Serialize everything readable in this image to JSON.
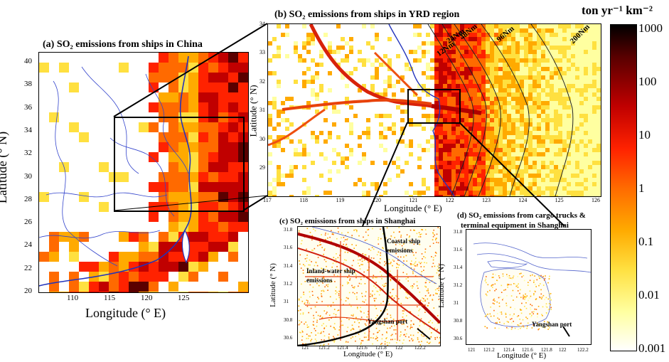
{
  "panels": {
    "a": {
      "title": "(a) SO₂ emissions from ships in China",
      "xlabel": "Longitude (° E)",
      "ylabel": "Latitude (° N)",
      "xticks": [
        "110",
        "115",
        "120",
        "125"
      ],
      "yticks": [
        "40",
        "38",
        "36",
        "34",
        "32",
        "30",
        "28",
        "26",
        "24",
        "22",
        "20"
      ]
    },
    "b": {
      "title": "(b) SO₂ emissions from ships in YRD region",
      "xlabel": "Longitude (° E)",
      "ylabel": "Latitude (° N)",
      "xticks": [
        "117",
        "118",
        "119",
        "120",
        "121",
        "122",
        "123",
        "124",
        "125",
        "126"
      ],
      "yticks": [
        "34",
        "33",
        "32",
        "31",
        "30",
        "29"
      ],
      "contours": [
        "12Nm",
        "24Nm",
        "48Nm",
        "96Nm",
        "200Nm"
      ]
    },
    "c": {
      "title": "(c) SO₂ emissions from ships in Shanghai",
      "xlabel": "Longitude (° E)",
      "ylabel": "Latitude (° N)",
      "xticks": [
        "121",
        "121.2",
        "121.4",
        "121.6",
        "121.8",
        "122",
        "122.2"
      ],
      "yticks": [
        "31.8",
        "31.6",
        "31.4",
        "31.2",
        "31",
        "30.8",
        "30.6"
      ],
      "annotations": {
        "coastal": "Coastal ship emissions",
        "inland": "Inland-water ship emissions",
        "port": "Yangshan port"
      }
    },
    "d": {
      "title_line1": "(d) SO₂ emissions from cargo trucks &",
      "title_line2": "terminal equipment in Shanghai",
      "xlabel": "Longitude (° E)",
      "ylabel": "Latitude (° N)",
      "xticks": [
        "121",
        "121.2",
        "121.4",
        "121.6",
        "121.8",
        "122",
        "122.2"
      ],
      "yticks": [
        "31.8",
        "31.6",
        "31.4",
        "31.2",
        "31",
        "30.8",
        "30.6"
      ],
      "port": "Yangshan port"
    }
  },
  "colorbar": {
    "unit": "ton yr⁻¹ km⁻²",
    "ticks": [
      "1000",
      "100",
      "10",
      "1",
      "0.1",
      "0.01",
      "0.001"
    ],
    "colors": [
      "#000000",
      "#5a0000",
      "#c00000",
      "#ff2200",
      "#ff6a00",
      "#ffaa00",
      "#ffe040",
      "#ffffa0",
      "#ffffff"
    ]
  }
}
